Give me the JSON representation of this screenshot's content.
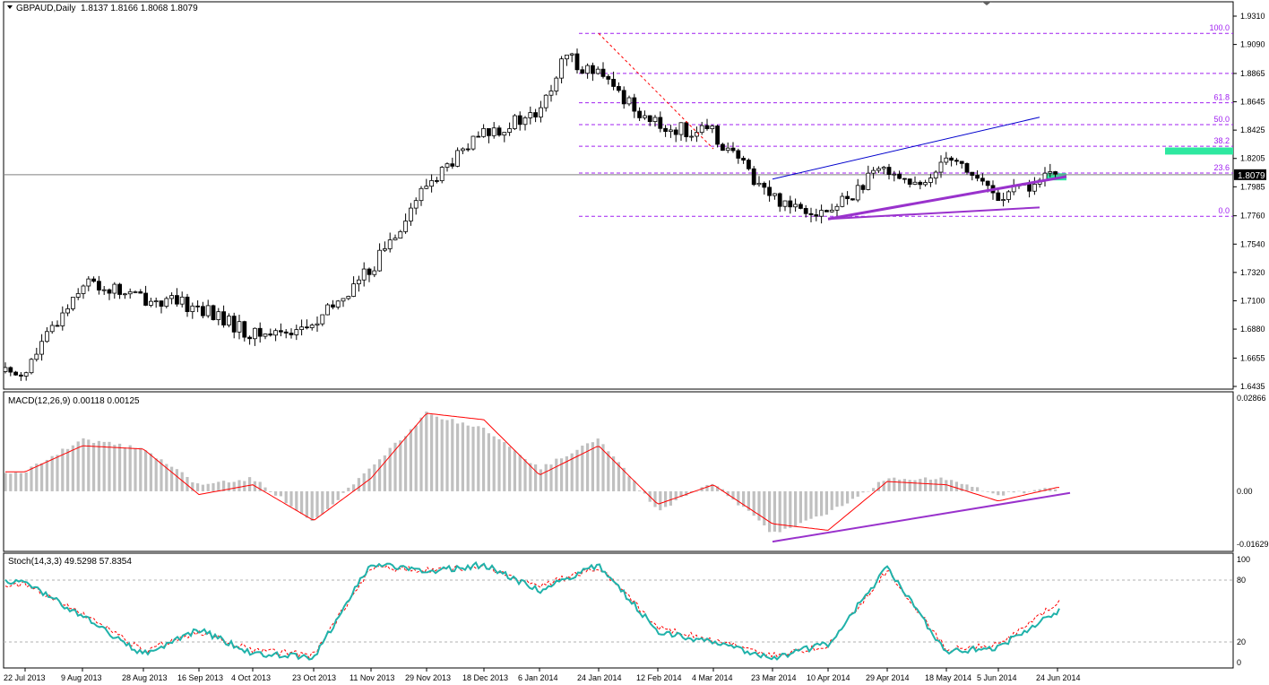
{
  "window": {
    "symbol_header": "GBPAUD,Daily",
    "ohlc_header": "1.8137 1.8166 1.8068 1.8079"
  },
  "colors": {
    "background": "#ffffff",
    "frame": "#000000",
    "candle_up": "#ffffff",
    "candle_down": "#000000",
    "macd_histogram": "#c0c0c0",
    "macd_signal": "#ff0000",
    "stoch_main": "#20b2aa",
    "stoch_signal": "#ff0000",
    "fib_levels": "#a020f0",
    "trendline_support": "#9932cc",
    "channel_line": "#0000cd",
    "target_zone": "#2ee8a0",
    "bid_line": "#808080"
  },
  "chart_data": [
    {
      "type": "candlestick",
      "title": "GBPAUD,Daily",
      "ylim": [
        1.6435,
        1.931
      ],
      "y_tick_labels": [
        "1.9310",
        "1.9090",
        "1.8865",
        "1.8645",
        "1.8425",
        "1.8205",
        "1.7985",
        "1.7760",
        "1.7540",
        "1.7320",
        "1.7100",
        "1.6880",
        "1.6655",
        "1.6435"
      ],
      "y_ticks": [
        1.931,
        1.909,
        1.8865,
        1.8645,
        1.8425,
        1.8205,
        1.7985,
        1.776,
        1.754,
        1.732,
        1.71,
        1.688,
        1.6655,
        1.6435
      ],
      "current_price_label": "1.8079",
      "current_price": 1.8079,
      "x_tick_labels": [
        "22 Jul 2013",
        "9 Aug 2013",
        "28 Aug 2013",
        "16 Sep 2013",
        "4 Oct 2013",
        "23 Oct 2013",
        "11 Nov 2013",
        "29 Nov 2013",
        "18 Dec 2013",
        "6 Jan 2014",
        "24 Jan 2014",
        "12 Feb 2014",
        "4 Mar 2014",
        "23 Mar 2014",
        "10 Apr 2014",
        "29 Apr 2014",
        "18 May 2014",
        "5 Jun 2014",
        "24 Jun 2014"
      ],
      "close_path": [
        [
          "22 Jul 2013",
          1.655
        ],
        [
          "9 Aug 2013",
          1.725
        ],
        [
          "28 Aug 2013",
          1.712
        ],
        [
          "16 Sep 2013",
          1.705
        ],
        [
          "4 Oct 2013",
          1.683
        ],
        [
          "23 Oct 2013",
          1.69
        ],
        [
          "11 Nov 2013",
          1.735
        ],
        [
          "29 Nov 2013",
          1.8
        ],
        [
          "18 Dec 2013",
          1.84
        ],
        [
          "6 Jan 2014",
          1.855
        ],
        [
          "14 Jan 2014",
          1.9
        ],
        [
          "24 Jan 2014",
          1.885
        ],
        [
          "12 Feb 2014",
          1.845
        ],
        [
          "4 Mar 2014",
          1.84
        ],
        [
          "23 Mar 2014",
          1.79
        ],
        [
          "10 Apr 2014",
          1.778
        ],
        [
          "29 Apr 2014",
          1.815
        ],
        [
          "10 May 2014",
          1.795
        ],
        [
          "18 May 2014",
          1.826
        ],
        [
          "5 Jun 2014",
          1.79
        ],
        [
          "24 Jun 2014",
          1.8079
        ]
      ],
      "fibonacci": {
        "levels": [
          {
            "label": "100.0",
            "price": 1.9176
          },
          {
            "label": "61.8",
            "price": 1.8637
          },
          {
            "label": "50.0",
            "price": 1.8468
          },
          {
            "label": "38.2",
            "price": 1.83
          },
          {
            "label": "23.6",
            "price": 1.8092
          },
          {
            "label": "0.0",
            "price": 1.7756
          }
        ],
        "extra_level_price": 1.8865
      },
      "target_zone": {
        "from": 1.8235,
        "to": 1.829
      },
      "current_zone": {
        "from": 1.8035,
        "to": 1.809
      },
      "trendlines": [
        {
          "name": "fib-swing",
          "from": [
            "24 Jan 2014",
            1.9176
          ],
          "to": [
            "4 Mar 2014",
            1.828
          ]
        },
        {
          "name": "channel-top",
          "from": [
            "23 Mar 2014",
            1.8045
          ],
          "to": [
            "24 Jun 2014",
            1.8525
          ]
        },
        {
          "name": "support-rising",
          "from": [
            "10 Apr 2014",
            1.7735
          ],
          "to": [
            "24 Jun 2014",
            1.8065
          ]
        },
        {
          "name": "support-lower",
          "from": [
            "10 Apr 2014",
            1.7735
          ],
          "to": [
            "24 Jun 2014",
            1.7825
          ]
        }
      ]
    },
    {
      "type": "bar",
      "title": "MACD(12,26,9) 0.00118 0.00125",
      "ylim": [
        -0.01629,
        0.02866
      ],
      "y_tick_labels": [
        "0.02866",
        "0.00",
        "-0.01629"
      ],
      "y_ticks": [
        0.02866,
        0.0,
        -0.01629
      ],
      "histogram_path": [
        [
          "22 Jul 2013",
          0.006
        ],
        [
          "9 Aug 2013",
          0.016
        ],
        [
          "28 Aug 2013",
          0.013
        ],
        [
          "16 Sep 2013",
          0.002
        ],
        [
          "4 Oct 2013",
          0.004
        ],
        [
          "23 Oct 2013",
          -0.009
        ],
        [
          "11 Nov 2013",
          0.007
        ],
        [
          "29 Nov 2013",
          0.024
        ],
        [
          "18 Dec 2013",
          0.019
        ],
        [
          "6 Jan 2014",
          0.007
        ],
        [
          "24 Jan 2014",
          0.016
        ],
        [
          "12 Feb 2014",
          -0.006
        ],
        [
          "4 Mar 2014",
          0.003
        ],
        [
          "23 Mar 2014",
          -0.013
        ],
        [
          "10 Apr 2014",
          -0.007
        ],
        [
          "29 Apr 2014",
          0.004
        ],
        [
          "18 May 2014",
          0.004
        ],
        [
          "5 Jun 2014",
          -0.001
        ],
        [
          "24 Jun 2014",
          0.001
        ]
      ],
      "signal_path": [
        [
          "22 Jul 2013",
          0.006
        ],
        [
          "9 Aug 2013",
          0.014
        ],
        [
          "28 Aug 2013",
          0.013
        ],
        [
          "16 Sep 2013",
          -0.001
        ],
        [
          "4 Oct 2013",
          0.002
        ],
        [
          "23 Oct 2013",
          -0.009
        ],
        [
          "11 Nov 2013",
          0.004
        ],
        [
          "29 Nov 2013",
          0.024
        ],
        [
          "18 Dec 2013",
          0.022
        ],
        [
          "6 Jan 2014",
          0.005
        ],
        [
          "24 Jan 2014",
          0.014
        ],
        [
          "12 Feb 2014",
          -0.004
        ],
        [
          "4 Mar 2014",
          0.002
        ],
        [
          "23 Mar 2014",
          -0.01
        ],
        [
          "10 Apr 2014",
          -0.012
        ],
        [
          "29 Apr 2014",
          0.003
        ],
        [
          "18 May 2014",
          0.002
        ],
        [
          "5 Jun 2014",
          -0.003
        ],
        [
          "24 Jun 2014",
          0.0012
        ]
      ],
      "trendline": {
        "from": [
          "23 Mar 2014",
          -0.0155
        ],
        "to": [
          "24 Jun 2014",
          -0.0005
        ]
      }
    },
    {
      "type": "line",
      "title": "Stoch(14,3,3) 49.5298 57.8354",
      "ylim": [
        0,
        100
      ],
      "y_tick_labels": [
        "100",
        "80",
        "20",
        "0"
      ],
      "y_ticks": [
        100,
        80,
        20,
        0
      ],
      "levels": [
        80,
        20
      ],
      "series": [
        {
          "name": "main",
          "points": [
            [
              "22 Jul 2013",
              78
            ],
            [
              "9 Aug 2013",
              45
            ],
            [
              "28 Aug 2013",
              8
            ],
            [
              "16 Sep 2013",
              32
            ],
            [
              "4 Oct 2013",
              9
            ],
            [
              "23 Oct 2013",
              5
            ],
            [
              "11 Nov 2013",
              96
            ],
            [
              "29 Nov 2013",
              88
            ],
            [
              "18 Dec 2013",
              95
            ],
            [
              "6 Jan 2014",
              70
            ],
            [
              "24 Jan 2014",
              95
            ],
            [
              "12 Feb 2014",
              30
            ],
            [
              "4 Mar 2014",
              20
            ],
            [
              "23 Mar 2014",
              5
            ],
            [
              "10 Apr 2014",
              18
            ],
            [
              "29 Apr 2014",
              92
            ],
            [
              "18 May 2014",
              10
            ],
            [
              "5 Jun 2014",
              15
            ],
            [
              "24 Jun 2014",
              49.5
            ]
          ]
        },
        {
          "name": "signal",
          "points": [
            [
              "22 Jul 2013",
              76
            ],
            [
              "9 Aug 2013",
              48
            ],
            [
              "28 Aug 2013",
              11
            ],
            [
              "16 Sep 2013",
              30
            ],
            [
              "4 Oct 2013",
              12
            ],
            [
              "23 Oct 2013",
              7
            ],
            [
              "11 Nov 2013",
              92
            ],
            [
              "29 Nov 2013",
              90
            ],
            [
              "18 Dec 2013",
              93
            ],
            [
              "6 Jan 2014",
              74
            ],
            [
              "24 Jan 2014",
              93
            ],
            [
              "12 Feb 2014",
              34
            ],
            [
              "4 Mar 2014",
              22
            ],
            [
              "23 Mar 2014",
              7
            ],
            [
              "10 Apr 2014",
              16
            ],
            [
              "29 Apr 2014",
              90
            ],
            [
              "18 May 2014",
              13
            ],
            [
              "5 Jun 2014",
              17
            ],
            [
              "24 Jun 2014",
              57.8
            ]
          ]
        }
      ]
    }
  ]
}
